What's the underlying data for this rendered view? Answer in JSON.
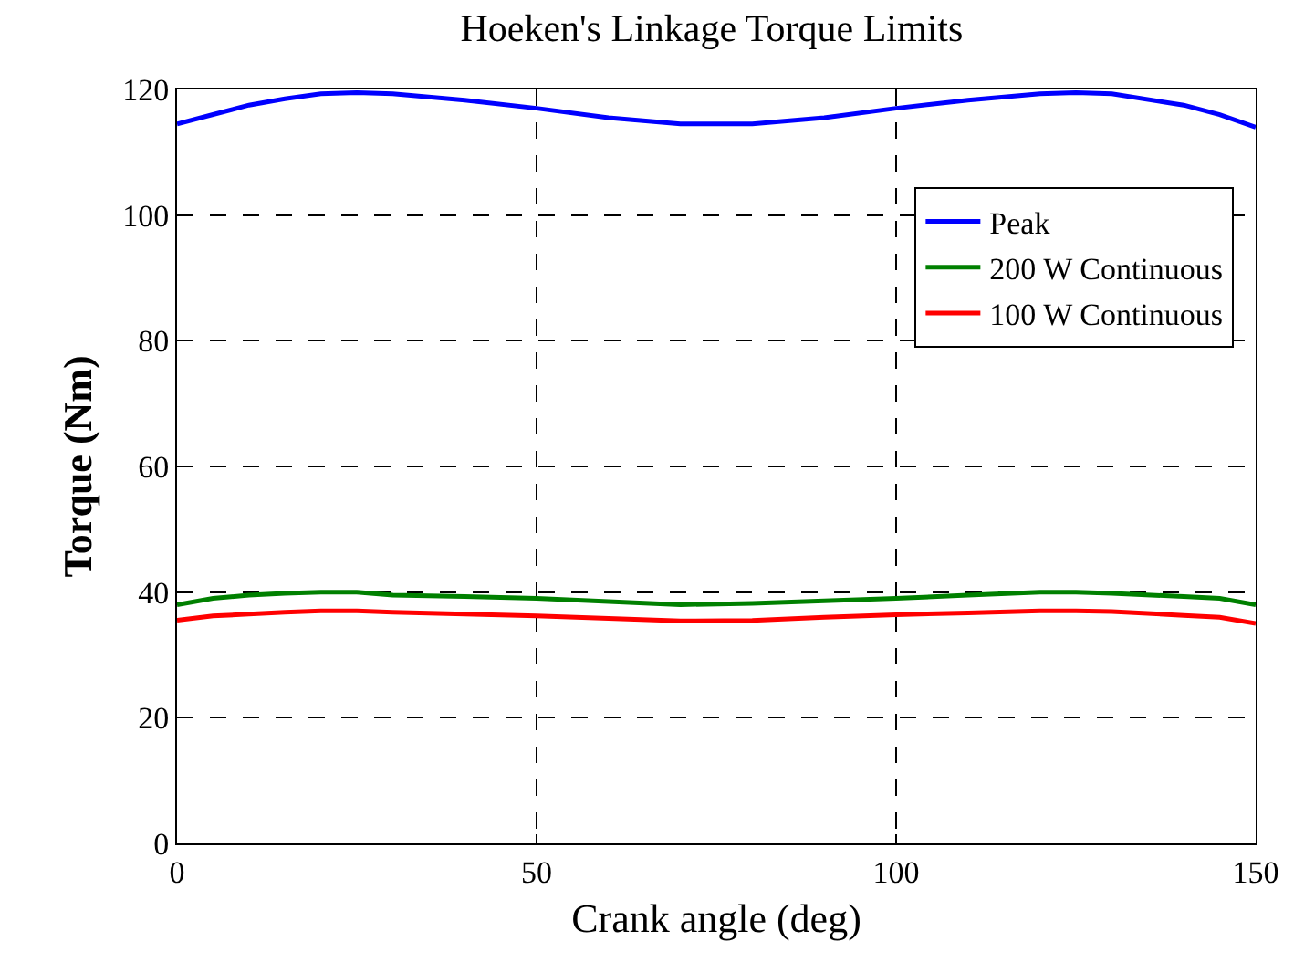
{
  "chart_data": {
    "type": "line",
    "title": "Hoeken's Linkage Torque Limits",
    "xlabel": "Crank angle (deg)",
    "ylabel": "Torque (Nm)",
    "x": [
      0,
      5,
      10,
      15,
      20,
      25,
      30,
      40,
      50,
      60,
      70,
      80,
      90,
      100,
      110,
      120,
      125,
      130,
      140,
      145,
      150
    ],
    "series": [
      {
        "name": "Peak",
        "color": "#0000ff",
        "values": [
          114.5,
          116,
          117.5,
          118.5,
          119.3,
          119.5,
          119.3,
          118.3,
          117,
          115.5,
          114.5,
          114.5,
          115.5,
          117,
          118.3,
          119.3,
          119.5,
          119.3,
          117.5,
          116,
          114
        ]
      },
      {
        "name": "200 W Continuous",
        "color": "#008000",
        "values": [
          38,
          39,
          39.5,
          39.8,
          40,
          40,
          39.5,
          39.3,
          39,
          38.5,
          38,
          38.2,
          38.6,
          39,
          39.5,
          40,
          40,
          39.8,
          39.3,
          39,
          38
        ]
      },
      {
        "name": "100 W Continuous",
        "color": "#ff0000",
        "values": [
          35.5,
          36.2,
          36.5,
          36.8,
          37,
          37,
          36.8,
          36.5,
          36.2,
          35.8,
          35.4,
          35.5,
          36,
          36.4,
          36.7,
          37,
          37,
          36.9,
          36.3,
          36,
          35
        ]
      }
    ],
    "xlim": [
      0,
      150
    ],
    "xticks": [
      0,
      50,
      100,
      150
    ],
    "ylim": [
      0,
      120
    ],
    "yticks": [
      0,
      20,
      40,
      60,
      80,
      100,
      120
    ],
    "grid": true,
    "legend": "top right",
    "marker": "none",
    "line_style": "solid"
  }
}
